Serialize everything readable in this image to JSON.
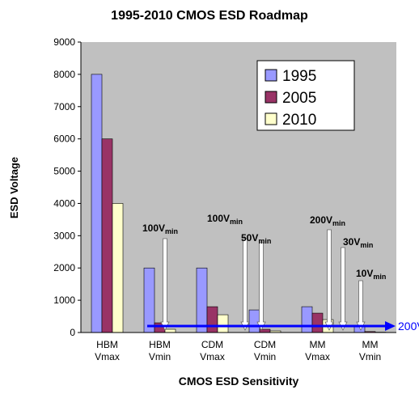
{
  "chart_data": {
    "type": "bar",
    "title": "1995-2010 CMOS ESD Roadmap",
    "x_label": "CMOS ESD Sensitivity",
    "y_label": "ESD Voltage",
    "categories": [
      "HBM Vmax",
      "HBM Vmin",
      "CDM Vmax",
      "CDM Vmin",
      "MM Vmax",
      "MM Vmin"
    ],
    "series": [
      {
        "name": "1995",
        "color": "#9999ff",
        "values": [
          8000,
          2000,
          2000,
          700,
          800,
          200
        ]
      },
      {
        "name": "2005",
        "color": "#993366",
        "values": [
          6000,
          300,
          800,
          100,
          600,
          30
        ]
      },
      {
        "name": "2010",
        "color": "#ffffcc",
        "values": [
          4000,
          100,
          550,
          50,
          400,
          10
        ]
      }
    ],
    "ylim": [
      0,
      9000
    ],
    "yticks": [
      0,
      1000,
      2000,
      3000,
      4000,
      5000,
      6000,
      7000,
      8000,
      9000
    ],
    "grid": false,
    "legend": "upper right",
    "annotations": [
      {
        "label": "100V",
        "subscript": "min"
      },
      {
        "label": "100V",
        "subscript": "min"
      },
      {
        "label": "50V",
        "subscript": "min"
      },
      {
        "label": "200V",
        "subscript": "min"
      },
      {
        "label": "30V",
        "subscript": "min"
      },
      {
        "label": "10V",
        "subscript": "min"
      }
    ],
    "reference_line": {
      "value": 200,
      "label": "200V",
      "color": "#0000ff"
    }
  }
}
